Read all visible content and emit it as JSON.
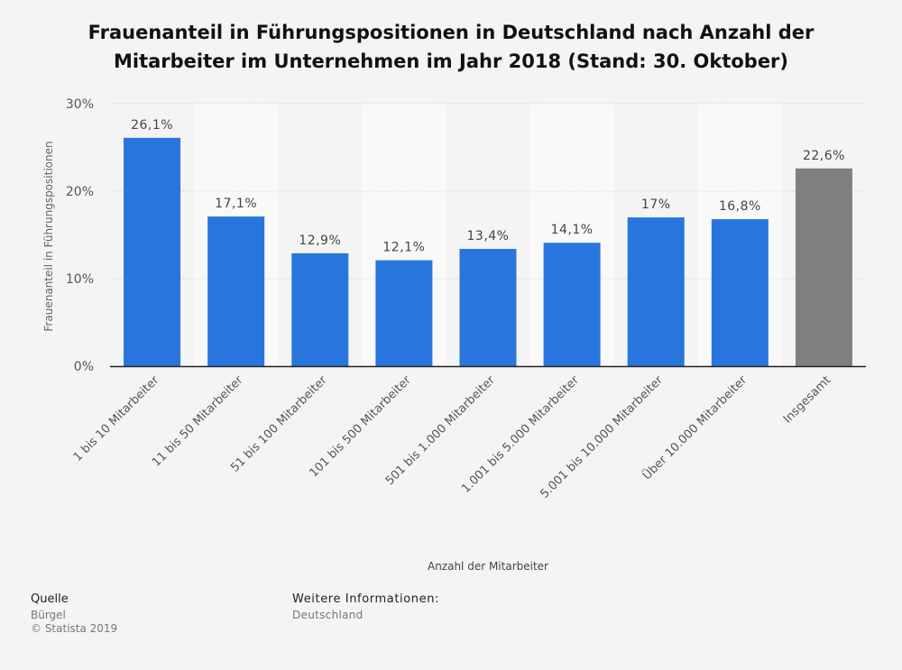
{
  "title": "Frauenanteil in Führungspositionen in Deutschland nach Anzahl der Mitarbeiter im Unternehmen im Jahr 2018 (Stand: 30. Oktober)",
  "chart_data": {
    "type": "bar",
    "title": "Frauenanteil in Führungspositionen in Deutschland nach Anzahl der Mitarbeiter im Unternehmen im Jahr 2018 (Stand: 30. Oktober)",
    "xlabel": "Anzahl der Mitarbeiter",
    "ylabel": "Frauenanteil in Führungspositionen",
    "categories": [
      "1 bis 10 Mitarbeiter",
      "11 bis 50 Mitarbeiter",
      "51 bis 100 Mitarbeiter",
      "101 bis 500 Mitarbeiter",
      "501 bis 1.000 Mitarbeiter",
      "1.001 bis 5.000 Mitarbeiter",
      "5.001 bis 10.000 Mitarbeiter",
      "Über 10.000 Mitarbeiter",
      "Insgesamt"
    ],
    "values": [
      26.1,
      17.1,
      12.9,
      12.1,
      13.4,
      14.1,
      17,
      16.8,
      22.6
    ],
    "value_labels": [
      "26,1%",
      "17,1%",
      "12,9%",
      "12,1%",
      "13,4%",
      "14,1%",
      "17%",
      "16,8%",
      "22,6%"
    ],
    "bar_colors": [
      "#2876dd",
      "#2876dd",
      "#2876dd",
      "#2876dd",
      "#2876dd",
      "#2876dd",
      "#2876dd",
      "#2876dd",
      "#7f7f7f"
    ],
    "ylim": [
      0,
      30
    ],
    "yticks": [
      0,
      10,
      20,
      30
    ],
    "ytick_labels": [
      "0%",
      "10%",
      "20%",
      "30%"
    ],
    "grid": true,
    "legend": "none"
  },
  "footer": {
    "source_label": "Quelle",
    "source_value": "Bürgel",
    "copyright": "© Statista 2019",
    "info_label": "Weitere Informationen:",
    "info_value": "Deutschland"
  }
}
